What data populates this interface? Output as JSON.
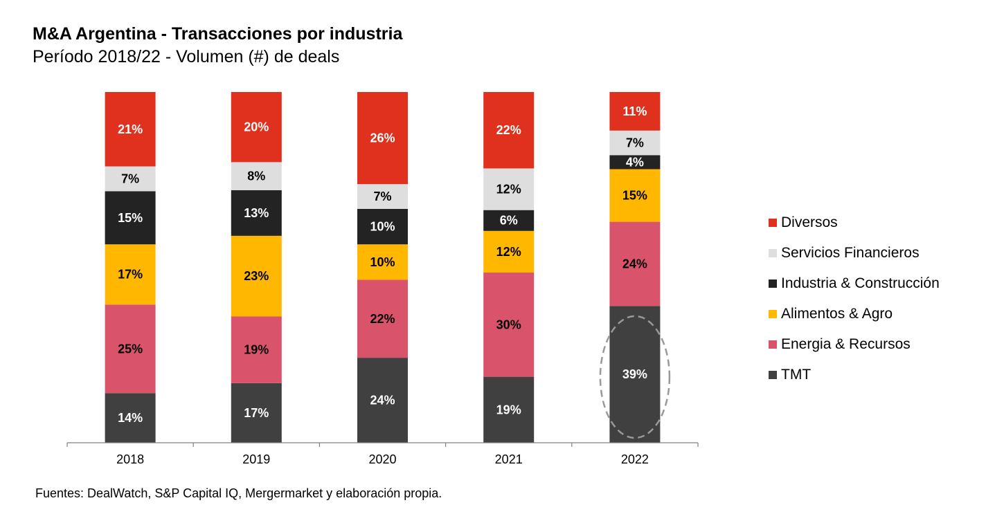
{
  "title": "M&A Argentina - Transacciones por industria",
  "subtitle": "Período 2018/22 - Volumen (#) de deals",
  "source": "Fuentes: DealWatch, S&P Capital IQ, Mergermarket y elaboración propia.",
  "chart_data": {
    "type": "bar",
    "stacked": true,
    "percent_stacked": true,
    "categories": [
      "2018",
      "2019",
      "2020",
      "2021",
      "2022"
    ],
    "series": [
      {
        "name": "TMT",
        "color": "#404040",
        "values": [
          14,
          17,
          24,
          19,
          39
        ]
      },
      {
        "name": "Energia & Recursos",
        "color": "#d9536a",
        "values": [
          25,
          19,
          22,
          30,
          24
        ]
      },
      {
        "name": "Alimentos & Agro",
        "color": "#ffb700",
        "values": [
          17,
          23,
          10,
          12,
          15
        ]
      },
      {
        "name": "Industria & Construcción",
        "color": "#232323",
        "values": [
          15,
          13,
          10,
          6,
          4
        ]
      },
      {
        "name": "Servicios Financieros",
        "color": "#dedede",
        "values": [
          7,
          8,
          7,
          12,
          7
        ]
      },
      {
        "name": "Diversos",
        "color": "#e0301e",
        "values": [
          21,
          20,
          26,
          22,
          11
        ]
      }
    ],
    "legend_order": [
      "Diversos",
      "Servicios Financieros",
      "Industria & Construcción",
      "Alimentos & Agro",
      "Energia & Recursos",
      "TMT"
    ],
    "legend_position": "right",
    "highlight": {
      "category": "2022",
      "series": "TMT",
      "style": "dashed ellipse"
    },
    "grid": false
  }
}
